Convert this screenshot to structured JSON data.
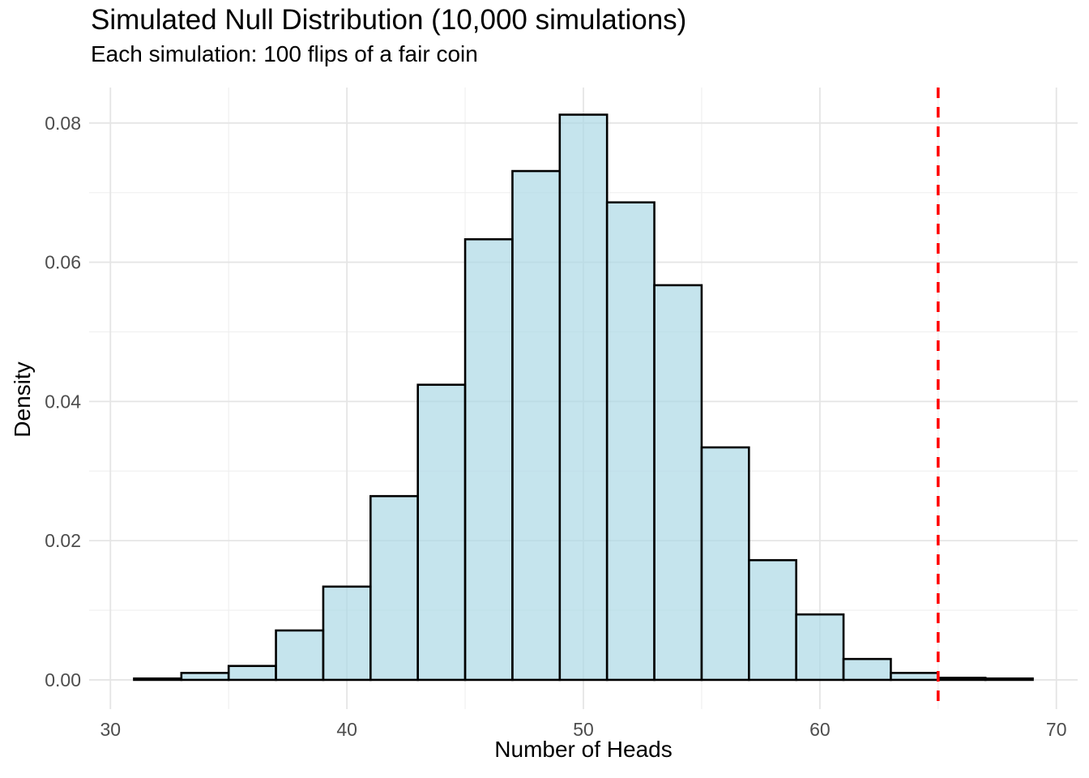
{
  "chart_data": {
    "type": "bar",
    "subtype": "histogram",
    "title": "Simulated Null Distribution (10,000 simulations)",
    "subtitle": "Each simulation: 100 flips of a fair coin",
    "xlabel": "Number of Heads",
    "ylabel": "Density",
    "bin_edges": [
      31,
      33,
      35,
      37,
      39,
      41,
      43,
      45,
      47,
      49,
      51,
      53,
      55,
      57,
      59,
      61,
      63,
      65,
      67,
      69
    ],
    "densities": [
      0.0002,
      0.001,
      0.002,
      0.0071,
      0.0134,
      0.0264,
      0.0424,
      0.0633,
      0.0731,
      0.0812,
      0.0686,
      0.0567,
      0.0334,
      0.0172,
      0.0094,
      0.003,
      0.001,
      0.0003,
      0.0002
    ],
    "x_tick_values": [
      30,
      40,
      50,
      60,
      70
    ],
    "x_tick_labels": [
      "30",
      "40",
      "50",
      "60",
      "70"
    ],
    "x_minor_ticks": [
      35,
      45,
      55,
      65
    ],
    "y_tick_values": [
      0,
      0.02,
      0.04,
      0.06,
      0.08
    ],
    "y_tick_labels": [
      "0.00",
      "0.02",
      "0.04",
      "0.06",
      "0.08"
    ],
    "y_minor_ticks": [
      0.01,
      0.03,
      0.05,
      0.07
    ],
    "xlim": [
      29.1,
      70.9
    ],
    "ylim": [
      -0.0042,
      0.0851
    ],
    "grid": true,
    "legend": "none",
    "reference_line": {
      "x": 65,
      "style": "dashed",
      "color": "#FF0000"
    },
    "colors": {
      "bar_fill": "#ADD8E6",
      "bar_fill_opacity": 0.7,
      "bar_outline": "#000000",
      "major_gridline": "#E5E5E5",
      "minor_gridline": "#F0F0F0",
      "tick_label": "#4D4D4D",
      "text": "#000000",
      "background": "#FFFFFF"
    }
  }
}
